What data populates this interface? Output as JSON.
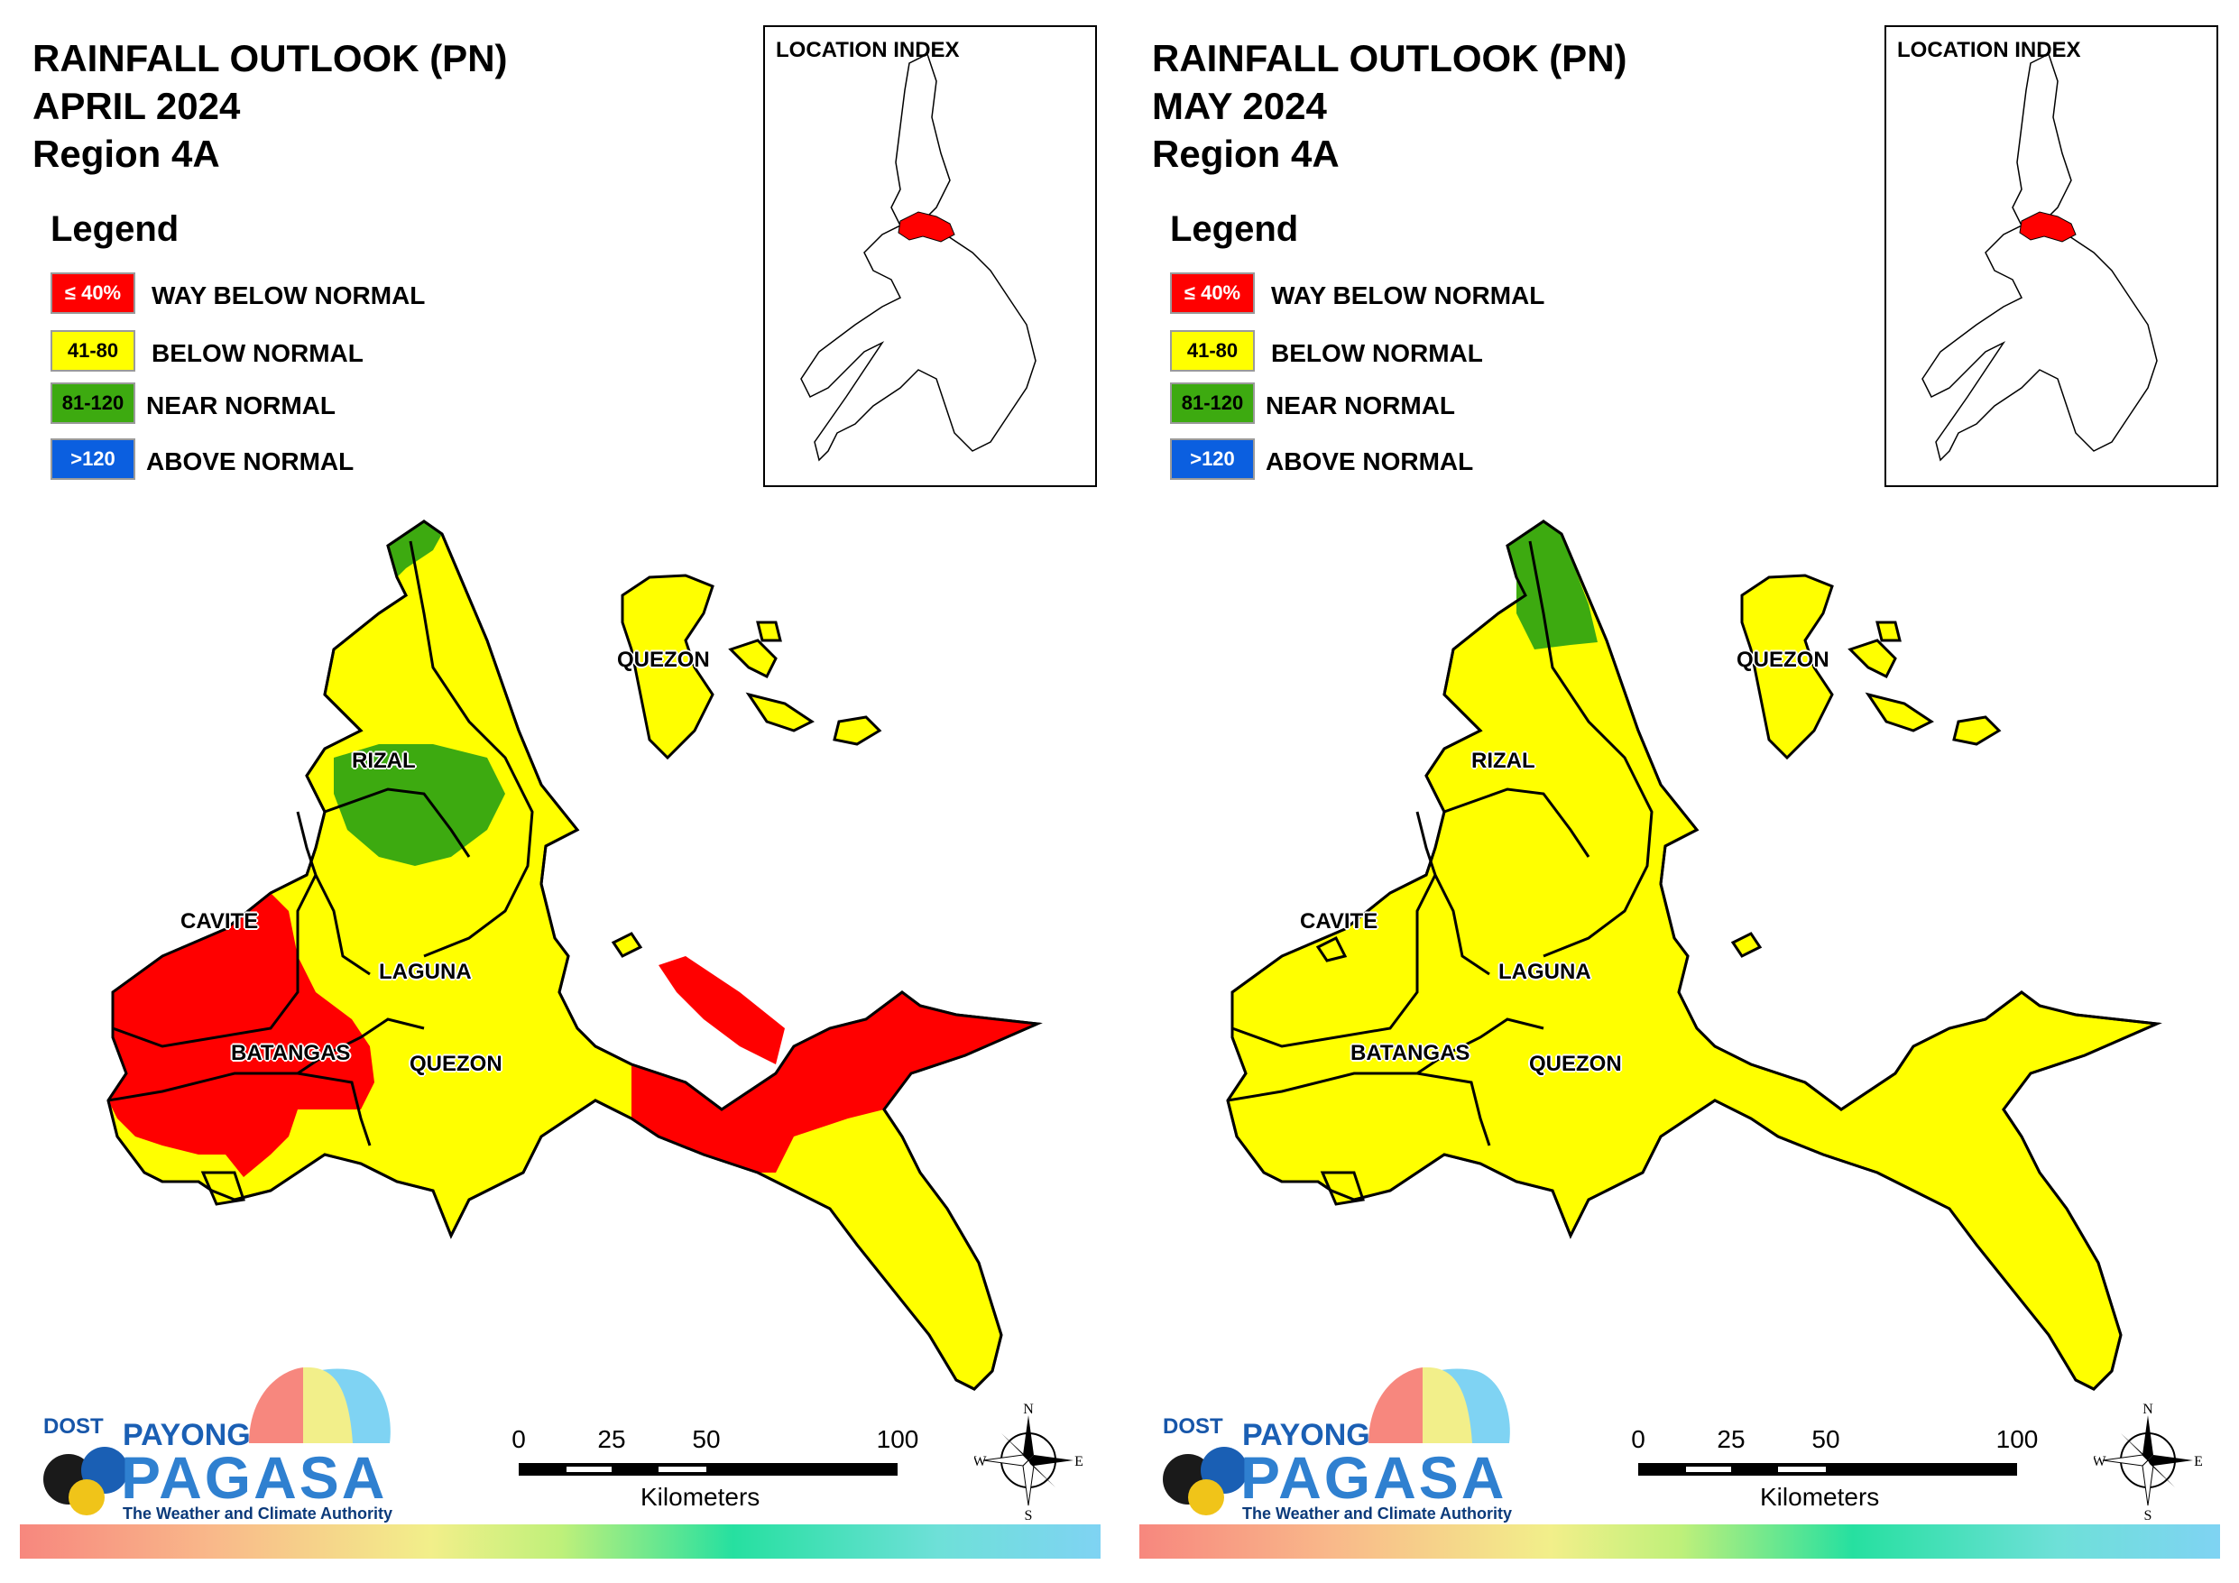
{
  "panels": [
    {
      "title_line1": "RAINFALL OUTLOOK (PN)",
      "title_line2": "APRIL 2024",
      "title_line3": "Region 4A",
      "legend": {
        "title": "Legend",
        "items": [
          {
            "range": "≤ 40%",
            "label": "WAY BELOW NORMAL",
            "color": "#ff0000"
          },
          {
            "range": "41-80",
            "label": "BELOW NORMAL",
            "color": "#ffff00"
          },
          {
            "range": "81-120",
            "label": "NEAR NORMAL",
            "color": "#3daa10"
          },
          {
            "range": ">120",
            "label": "ABOVE NORMAL",
            "color": "#0b5fe0"
          }
        ]
      },
      "location_index": "LOCATION INDEX",
      "places": {
        "quezon_north": "QUEZON",
        "rizal": "RIZAL",
        "cavite": "CAVITE",
        "laguna": "LAGUNA",
        "batangas": "BATANGAS",
        "quezon_south": "QUEZON"
      },
      "logo": {
        "dost": "DOST",
        "payong": "PAYONG",
        "pagasa": "PAGASA",
        "tagline": "The Weather and Climate Authority"
      },
      "scale": {
        "ticks": [
          "0",
          "25",
          "50",
          "100"
        ],
        "unit": "Kilometers"
      },
      "compass": {
        "n": "N",
        "s": "S",
        "e": "E",
        "w": "W"
      }
    },
    {
      "title_line1": "RAINFALL OUTLOOK (PN)",
      "title_line2": "MAY 2024",
      "title_line3": "Region 4A",
      "legend": {
        "title": "Legend",
        "items": [
          {
            "range": "≤ 40%",
            "label": "WAY BELOW NORMAL",
            "color": "#ff0000"
          },
          {
            "range": "41-80",
            "label": "BELOW NORMAL",
            "color": "#ffff00"
          },
          {
            "range": "81-120",
            "label": "NEAR NORMAL",
            "color": "#3daa10"
          },
          {
            "range": ">120",
            "label": "ABOVE NORMAL",
            "color": "#0b5fe0"
          }
        ]
      },
      "location_index": "LOCATION INDEX",
      "places": {
        "quezon_north": "QUEZON",
        "rizal": "RIZAL",
        "cavite": "CAVITE",
        "laguna": "LAGUNA",
        "batangas": "BATANGAS",
        "quezon_south": "QUEZON"
      },
      "logo": {
        "dost": "DOST",
        "payong": "PAYONG",
        "pagasa": "PAGASA",
        "tagline": "The Weather and Climate Authority"
      },
      "scale": {
        "ticks": [
          "0",
          "25",
          "50",
          "100"
        ],
        "unit": "Kilometers"
      },
      "compass": {
        "n": "N",
        "s": "S",
        "e": "E",
        "w": "W"
      }
    }
  ]
}
